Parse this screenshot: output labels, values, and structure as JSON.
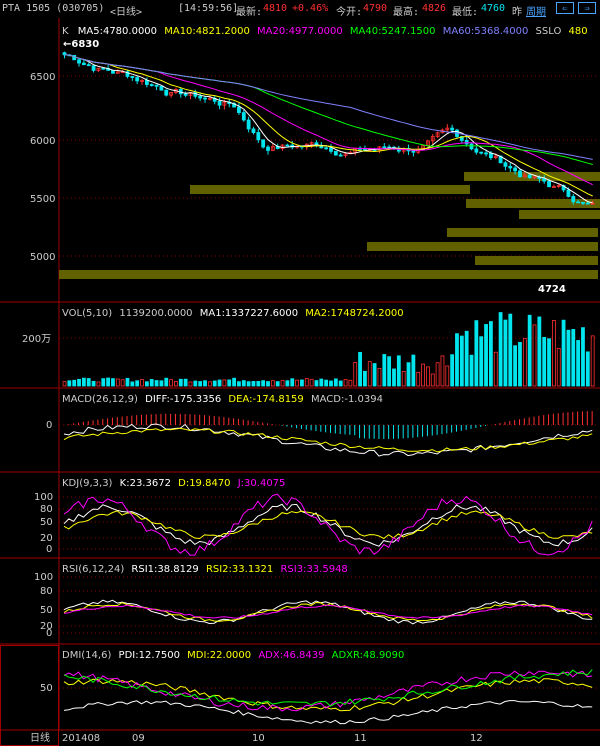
{
  "header": {
    "symbol": "PTA 1505 (030705)",
    "period_tag": "<日线>",
    "time": "[14:59:56]",
    "last_label": "最新:",
    "last_value": "4810",
    "change_pct": "+0.46%",
    "open_label": "今开:",
    "open_value": "4790",
    "high_label": "最高:",
    "high_value": "4826",
    "low_label": "最低:",
    "low_value": "4760",
    "prev_label": "昨",
    "period_button": "周期",
    "nav_left_icon": "arrow-left-icon",
    "nav_right_icon": "arrow-right-icon"
  },
  "price_panel": {
    "mode": "K",
    "ma5": "MA5:4780.0000",
    "ma10": "MA10:4821.2000",
    "ma20": "MA20:4977.0000",
    "ma40": "MA40:5247.1500",
    "ma60": "MA60:5368.4000",
    "sslo": "SSLO",
    "sslo_value": "480",
    "high_mark": "←6830",
    "low_mark": "4724",
    "y_ticks": [
      "6500",
      "6000",
      "5500",
      "5000"
    ]
  },
  "vol_panel": {
    "name": "VOL(5,10)",
    "value": "1139200.0000",
    "ma1": "MA1:1337227.6000",
    "ma2": "MA2:1748724.2000",
    "y_tick": "200万"
  },
  "macd_panel": {
    "name": "MACD(26,12,9)",
    "diff": "DIFF:-175.3356",
    "dea": "DEA:-174.8159",
    "macd": "MACD:-1.0394",
    "y_tick": "0"
  },
  "kdj_panel": {
    "name": "KDJ(9,3,3)",
    "k": "K:23.3672",
    "d": "D:19.8470",
    "j": "J:30.4075",
    "y_ticks": [
      "100",
      "80",
      "50",
      "20",
      "0"
    ]
  },
  "rsi_panel": {
    "name": "RSI(6,12,24)",
    "rsi1": "RSI1:38.8129",
    "rsi2": "RSI2:33.1321",
    "rsi3": "RSI3:33.5948",
    "y_ticks": [
      "100",
      "80",
      "50",
      "20",
      "0"
    ]
  },
  "dmi_panel": {
    "name": "DMI(14,6)",
    "pdi": "PDI:12.7500",
    "mdi": "MDI:22.0000",
    "adx": "ADX:46.8439",
    "adxr": "ADXR:48.9090",
    "y_tick": "50"
  },
  "x_axis": {
    "period_label": "日线",
    "labels": [
      "201408",
      "09",
      "10",
      "11",
      "12"
    ]
  },
  "colors": {
    "up": "#ff3030",
    "down": "#00e5ee",
    "ma5": "#ffffff",
    "ma10": "#ffff00",
    "ma20": "#ff00ff",
    "ma40": "#00ff00",
    "ma60": "#8080ff",
    "grid": "#8b0000",
    "volume_bar_zone": "#6b6b00"
  }
}
